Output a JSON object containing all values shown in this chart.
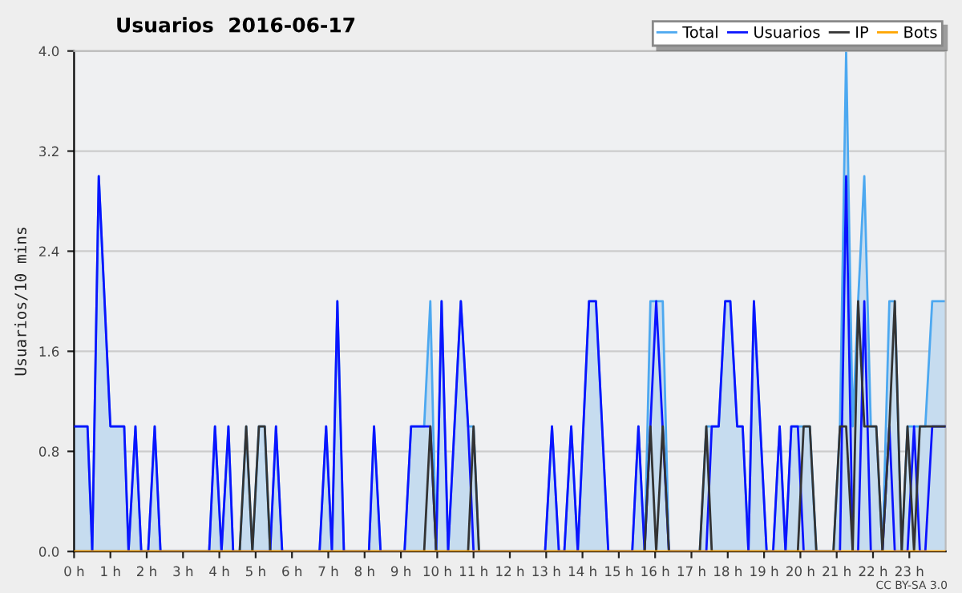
{
  "chart_data": {
    "type": "line",
    "title": "Usuarios  2016-06-17",
    "ylabel": "Usuarios/10 mins",
    "annotations": [
      "CC BY-SA 3.0"
    ],
    "xlim": [
      0,
      24
    ],
    "ylim": [
      0,
      4.0
    ],
    "xticks": [
      {
        "value": 0,
        "label": "0 h"
      },
      {
        "value": 1,
        "label": "1 h"
      },
      {
        "value": 2,
        "label": "2 h"
      },
      {
        "value": 3,
        "label": "3 h"
      },
      {
        "value": 4,
        "label": "4 h"
      },
      {
        "value": 5,
        "label": "5 h"
      },
      {
        "value": 6,
        "label": "6 h"
      },
      {
        "value": 7,
        "label": "7 h"
      },
      {
        "value": 8,
        "label": "8 h"
      },
      {
        "value": 9,
        "label": "9 h"
      },
      {
        "value": 10,
        "label": "10 h"
      },
      {
        "value": 11,
        "label": "11 h"
      },
      {
        "value": 12,
        "label": "12 h"
      },
      {
        "value": 13,
        "label": "13 h"
      },
      {
        "value": 14,
        "label": "14 h"
      },
      {
        "value": 15,
        "label": "15 h"
      },
      {
        "value": 16,
        "label": "16 h"
      },
      {
        "value": 17,
        "label": "17 h"
      },
      {
        "value": 18,
        "label": "18 h"
      },
      {
        "value": 19,
        "label": "19 h"
      },
      {
        "value": 20,
        "label": "20 h"
      },
      {
        "value": 21,
        "label": "21 h"
      },
      {
        "value": 22,
        "label": "22 h"
      },
      {
        "value": 23,
        "label": "23 h"
      }
    ],
    "yticks": [
      {
        "value": 0,
        "label": "0.0"
      },
      {
        "value": 0.8,
        "label": "0.8"
      },
      {
        "value": 1.6,
        "label": "1.6"
      },
      {
        "value": 2.4,
        "label": "2.4"
      },
      {
        "value": 3.2,
        "label": "3.2"
      },
      {
        "value": 4.0,
        "label": "4.0"
      }
    ],
    "grid": "y",
    "legend": "top right",
    "series": [
      {
        "name": "Total",
        "type": "area",
        "color": "#4ca8f0",
        "x": [
          0,
          0.37,
          0.5,
          0.68,
          1.0,
          1.38,
          1.5,
          1.69,
          1.85,
          2.04,
          2.22,
          2.38,
          3.72,
          3.88,
          4.06,
          4.25,
          4.38,
          4.56,
          4.74,
          4.91,
          5.09,
          5.25,
          5.4,
          5.56,
          5.73,
          6.76,
          6.94,
          7.1,
          7.25,
          7.43,
          8.12,
          8.26,
          8.44,
          9.1,
          9.28,
          9.64,
          9.81,
          9.97,
          10.12,
          10.3,
          10.65,
          10.85,
          11.0,
          11.15,
          12.97,
          13.16,
          13.35,
          13.5,
          13.69,
          13.87,
          14.18,
          14.37,
          14.71,
          15.37,
          15.54,
          15.71,
          15.87,
          16.21,
          16.38,
          17.23,
          17.41,
          17.56,
          17.75,
          17.93,
          18.07,
          18.26,
          18.41,
          18.57,
          18.72,
          19.07,
          19.25,
          19.43,
          19.59,
          19.75,
          20.26,
          20.44,
          20.91,
          21.09,
          21.26,
          21.44,
          21.59,
          21.76,
          21.94,
          22.09,
          22.26,
          22.45,
          22.6,
          22.79,
          22.95,
          23.44,
          23.63,
          24
        ],
        "values": [
          1,
          1,
          0,
          3,
          1,
          1,
          0,
          1,
          0,
          0,
          1,
          0,
          0,
          1,
          0,
          1,
          0,
          0,
          1,
          0,
          1,
          1,
          0,
          1,
          0,
          0,
          1,
          0,
          2,
          0,
          0,
          1,
          0,
          0,
          1,
          1,
          2,
          0,
          2,
          0,
          2,
          1,
          1,
          0,
          0,
          1,
          0,
          0,
          1,
          0,
          2,
          2,
          0,
          0,
          1,
          0,
          2,
          2,
          0,
          0,
          1,
          1,
          1,
          2,
          2,
          1,
          1,
          0,
          2,
          0,
          0,
          1,
          0,
          1,
          1,
          0,
          0,
          1,
          4,
          1,
          2,
          3,
          1,
          1,
          0,
          2,
          2,
          0,
          1,
          1,
          2,
          2
        ]
      },
      {
        "name": "Usuarios",
        "color": "#0a14ff",
        "x": [
          0,
          0.37,
          0.5,
          0.68,
          1.0,
          1.38,
          1.5,
          1.69,
          1.85,
          2.04,
          2.22,
          2.38,
          3.72,
          3.88,
          4.06,
          4.25,
          4.38,
          5.4,
          5.56,
          5.73,
          6.76,
          6.94,
          7.1,
          7.25,
          7.43,
          8.12,
          8.26,
          8.44,
          9.1,
          9.28,
          9.81,
          9.97,
          10.12,
          10.3,
          10.65,
          10.85,
          11.0,
          12.97,
          13.16,
          13.35,
          13.5,
          13.69,
          13.87,
          14.18,
          14.37,
          14.71,
          15.37,
          15.54,
          15.71,
          16.03,
          16.38,
          17.41,
          17.56,
          17.75,
          17.93,
          18.07,
          18.26,
          18.41,
          18.57,
          18.72,
          19.07,
          19.25,
          19.43,
          19.59,
          19.75,
          19.93,
          20.09,
          21.09,
          21.26,
          21.44,
          21.59,
          21.76,
          21.94,
          22.26,
          22.45,
          22.6,
          22.95,
          23.13,
          23.29,
          23.44,
          23.63,
          24
        ],
        "values": [
          1,
          1,
          0,
          3,
          1,
          1,
          0,
          1,
          0,
          0,
          1,
          0,
          0,
          1,
          0,
          1,
          0,
          0,
          1,
          0,
          0,
          1,
          0,
          2,
          0,
          0,
          1,
          0,
          0,
          1,
          1,
          0,
          2,
          0,
          2,
          1,
          0,
          0,
          1,
          0,
          0,
          1,
          0,
          2,
          2,
          0,
          0,
          1,
          0,
          2,
          0,
          0,
          1,
          1,
          2,
          2,
          1,
          1,
          0,
          2,
          0,
          0,
          1,
          0,
          1,
          1,
          0,
          0,
          3,
          0,
          0,
          2,
          0,
          0,
          1,
          0,
          0,
          1,
          0,
          0,
          1,
          1
        ]
      },
      {
        "name": "IP",
        "color": "#333333",
        "x": [
          0,
          4.56,
          4.74,
          4.91,
          5.09,
          5.25,
          5.4,
          9.64,
          9.81,
          9.97,
          10.85,
          11.0,
          11.15,
          15.71,
          15.87,
          16.03,
          16.21,
          16.38,
          17.23,
          17.41,
          17.56,
          19.93,
          20.09,
          20.26,
          20.44,
          20.91,
          21.09,
          21.26,
          21.44,
          21.59,
          21.76,
          22.09,
          22.26,
          22.45,
          22.6,
          22.79,
          22.95,
          23.13,
          23.29,
          24
        ],
        "values": [
          0,
          0,
          1,
          0,
          1,
          1,
          0,
          0,
          1,
          0,
          0,
          1,
          0,
          0,
          1,
          0,
          1,
          0,
          0,
          1,
          0,
          0,
          1,
          1,
          0,
          0,
          1,
          1,
          0,
          2,
          1,
          1,
          0,
          1,
          2,
          0,
          1,
          0,
          1,
          1
        ]
      },
      {
        "name": "Bots",
        "color": "#ffa500",
        "x": [
          0,
          24
        ],
        "values": [
          0,
          0
        ]
      }
    ]
  }
}
